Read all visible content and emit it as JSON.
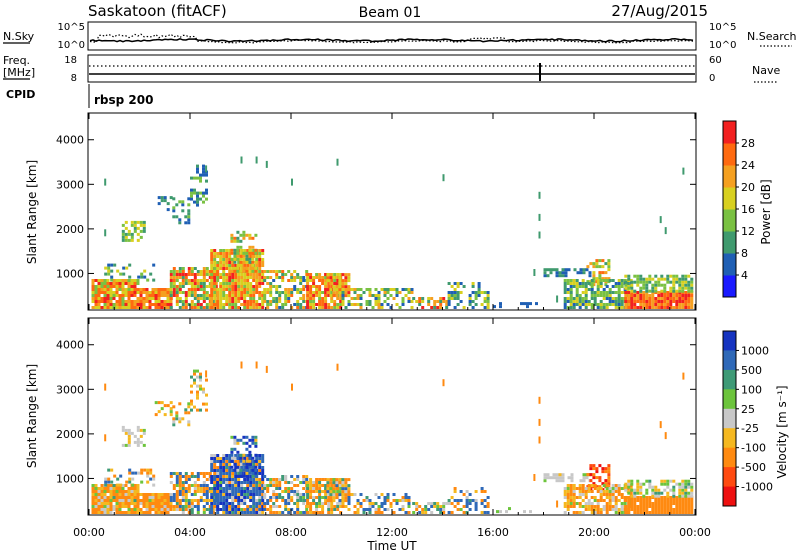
{
  "header": {
    "station": "Saskatoon (fitACF)",
    "beam": "Beam 01",
    "date": "27/Aug/2015"
  },
  "noise_panel": {
    "left_label": "N.Sky",
    "right_label": "N.Search",
    "left_ticks": [
      "10^5",
      "10^0"
    ],
    "right_ticks": [
      "10^5",
      "10^0"
    ]
  },
  "freq_panel": {
    "left_label_top": "Freq.",
    "left_label_bottom": "[MHz]",
    "right_label": "Nave",
    "left_ticks": [
      "18",
      "8"
    ],
    "right_ticks": [
      "60",
      "0"
    ]
  },
  "cpid_panel": {
    "label": "CPID",
    "value": "rbsp 200"
  },
  "chart_data": [
    {
      "type": "heatmap",
      "parameter": "power",
      "x": {
        "label": "Time UT",
        "range_hours": [
          0,
          24
        ],
        "ticks": [
          "00:00",
          "04:00",
          "08:00",
          "12:00",
          "16:00",
          "20:00",
          "00:00"
        ]
      },
      "y": {
        "label": "Slant Range [km]",
        "range": [
          180,
          4600
        ],
        "ticks": [
          1000,
          2000,
          3000,
          4000
        ]
      },
      "colorbar": {
        "label": "Power [dB]",
        "range": [
          0,
          32
        ],
        "ticks": [
          "4",
          "8",
          "12",
          "16",
          "20",
          "24",
          "28"
        ],
        "colors": [
          "#1a1aff",
          "#1f5fb4",
          "#3f9a6e",
          "#7ac142",
          "#d8d020",
          "#f5a020",
          "#ff6a10",
          "#f22020"
        ]
      }
    },
    {
      "type": "heatmap",
      "parameter": "velocity",
      "x": {
        "label": "Time UT",
        "range_hours": [
          0,
          24
        ],
        "ticks": [
          "00:00",
          "04:00",
          "08:00",
          "12:00",
          "16:00",
          "20:00",
          "00:00"
        ]
      },
      "y": {
        "label": "Slant Range [km]",
        "range": [
          180,
          4600
        ],
        "ticks": [
          1000,
          2000,
          3000,
          4000
        ]
      },
      "colorbar": {
        "label": "Velocity [m s⁻¹]",
        "ticks": [
          "1000",
          "500",
          "100",
          "25",
          "-25",
          "-100",
          "-500",
          "-1000"
        ],
        "colors": [
          "#1533c0",
          "#2f69b8",
          "#3e9a76",
          "#6cc43c",
          "#c8c8c8",
          "#f5b820",
          "#ff8a10",
          "#ff4a10",
          "#ee1010"
        ]
      }
    }
  ],
  "scatter_regions": [
    {
      "t0": 0.1,
      "t1": 2.0,
      "r0": 180,
      "r1": 800,
      "density": 0.92,
      "power": [
        14,
        30
      ],
      "vel": [
        -300,
        60
      ]
    },
    {
      "t0": 2.0,
      "t1": 3.3,
      "r0": 180,
      "r1": 650,
      "density": 0.9,
      "power": [
        18,
        30
      ],
      "vel": [
        -300,
        40
      ]
    },
    {
      "t0": 0.6,
      "t1": 2.6,
      "r0": 800,
      "r1": 1150,
      "density": 0.3,
      "power": [
        4,
        20
      ],
      "vel": [
        -200,
        200
      ]
    },
    {
      "t0": 1.3,
      "t1": 2.2,
      "r0": 1700,
      "r1": 2150,
      "density": 0.55,
      "power": [
        8,
        20
      ],
      "vel": [
        -60,
        40
      ]
    },
    {
      "t0": 2.6,
      "t1": 3.2,
      "r0": 2400,
      "r1": 2700,
      "density": 0.45,
      "power": [
        4,
        14
      ],
      "vel": [
        -150,
        50
      ]
    },
    {
      "t0": 3.3,
      "t1": 4.0,
      "r0": 2100,
      "r1": 2700,
      "density": 0.45,
      "power": [
        4,
        16
      ],
      "vel": [
        -200,
        100
      ]
    },
    {
      "t0": 4.0,
      "t1": 4.6,
      "r0": 2500,
      "r1": 3400,
      "density": 0.35,
      "power": [
        4,
        16
      ],
      "vel": [
        -200,
        100
      ]
    },
    {
      "t0": 3.2,
      "t1": 5.0,
      "r0": 180,
      "r1": 1100,
      "density": 0.72,
      "power": [
        8,
        30
      ],
      "vel": [
        -300,
        300
      ]
    },
    {
      "t0": 4.8,
      "t1": 6.9,
      "r0": 180,
      "r1": 1500,
      "density": 0.9,
      "power": [
        14,
        30
      ],
      "vel": [
        -200,
        800
      ]
    },
    {
      "t0": 5.6,
      "t1": 6.6,
      "r0": 1000,
      "r1": 1900,
      "density": 0.55,
      "power": [
        10,
        28
      ],
      "vel": [
        -100,
        900
      ]
    },
    {
      "t0": 6.9,
      "t1": 8.6,
      "r0": 180,
      "r1": 1000,
      "density": 0.6,
      "power": [
        6,
        26
      ],
      "vel": [
        -300,
        300
      ]
    },
    {
      "t0": 8.6,
      "t1": 10.0,
      "r0": 180,
      "r1": 950,
      "density": 0.85,
      "power": [
        14,
        30
      ],
      "vel": [
        -250,
        100
      ]
    },
    {
      "t0": 9.4,
      "t1": 10.3,
      "r0": 450,
      "r1": 950,
      "density": 0.75,
      "power": [
        16,
        30
      ],
      "vel": [
        -300,
        150
      ]
    },
    {
      "t0": 10.0,
      "t1": 12.8,
      "r0": 180,
      "r1": 600,
      "density": 0.5,
      "power": [
        4,
        24
      ],
      "vel": [
        -200,
        200
      ]
    },
    {
      "t0": 12.8,
      "t1": 14.2,
      "r0": 180,
      "r1": 450,
      "density": 0.65,
      "power": [
        8,
        30
      ],
      "vel": [
        -150,
        150
      ]
    },
    {
      "t0": 14.2,
      "t1": 15.8,
      "r0": 180,
      "r1": 750,
      "density": 0.4,
      "power": [
        4,
        20
      ],
      "vel": [
        -200,
        400
      ]
    },
    {
      "t0": 16.0,
      "t1": 17.8,
      "r0": 200,
      "r1": 320,
      "density": 0.25,
      "power": [
        4,
        8
      ],
      "vel": [
        -40,
        40
      ]
    },
    {
      "t0": 18.0,
      "t1": 19.8,
      "r0": 900,
      "r1": 1050,
      "density": 0.55,
      "power": [
        4,
        12
      ],
      "vel": [
        -30,
        30
      ]
    },
    {
      "t0": 19.7,
      "t1": 20.6,
      "r0": 700,
      "r1": 1250,
      "density": 0.55,
      "power": [
        10,
        28
      ],
      "vel": [
        -800,
        -100
      ]
    },
    {
      "t0": 18.8,
      "t1": 21.5,
      "r0": 180,
      "r1": 850,
      "density": 0.75,
      "power": [
        6,
        18
      ],
      "vel": [
        -200,
        50
      ]
    },
    {
      "t0": 21.2,
      "t1": 23.9,
      "r0": 180,
      "r1": 550,
      "density": 0.97,
      "power": [
        20,
        32
      ],
      "vel": [
        -300,
        -100
      ]
    },
    {
      "t0": 21.2,
      "t1": 23.9,
      "r0": 550,
      "r1": 900,
      "density": 0.7,
      "power": [
        8,
        20
      ],
      "vel": [
        -60,
        60
      ]
    }
  ],
  "scatter_points": [
    {
      "t": 0.6,
      "r": 3000
    },
    {
      "t": 0.6,
      "r": 1850
    },
    {
      "t": 4.6,
      "r": 3300
    },
    {
      "t": 6.0,
      "r": 3500
    },
    {
      "t": 6.6,
      "r": 3500
    },
    {
      "t": 7.0,
      "r": 3400
    },
    {
      "t": 8.0,
      "r": 3000
    },
    {
      "t": 9.8,
      "r": 3450
    },
    {
      "t": 14.0,
      "r": 3100
    },
    {
      "t": 17.8,
      "r": 2700
    },
    {
      "t": 17.8,
      "r": 2200
    },
    {
      "t": 17.8,
      "r": 1800
    },
    {
      "t": 22.6,
      "r": 2150
    },
    {
      "t": 22.8,
      "r": 1900
    },
    {
      "t": 23.5,
      "r": 3250
    },
    {
      "t": 17.6,
      "r": 950
    },
    {
      "t": 18.5,
      "r": 350
    }
  ]
}
